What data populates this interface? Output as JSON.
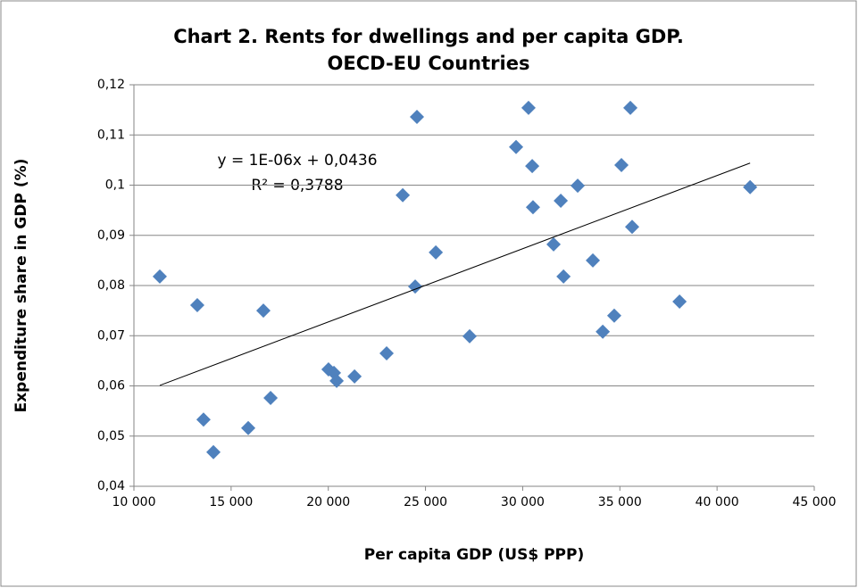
{
  "chart_data": {
    "type": "scatter",
    "title": [
      "Chart 2. Rents for dwellings and per capita GDP.",
      "OECD-EU Countries"
    ],
    "x_label": "Per capita GDP (US$ PPP)",
    "y_label": "Expenditure share in GDP (%)",
    "annotations": [
      "y = 1E-06x + 0,0436",
      "R² = 0,3788"
    ],
    "color": "#4f81bd",
    "grid": true,
    "xlim": [
      10000,
      45000
    ],
    "ylim": [
      0.04,
      0.12
    ],
    "xticks": [
      {
        "value": 10000,
        "label": "10 000"
      },
      {
        "value": 15000,
        "label": "15 000"
      },
      {
        "value": 20000,
        "label": "20 000"
      },
      {
        "value": 25000,
        "label": "25 000"
      },
      {
        "value": 30000,
        "label": "30 000"
      },
      {
        "value": 35000,
        "label": "35 000"
      },
      {
        "value": 40000,
        "label": "40 000"
      },
      {
        "value": 45000,
        "label": "45 000"
      }
    ],
    "yticks": [
      {
        "value": 0.04,
        "label": "0,04"
      },
      {
        "value": 0.05,
        "label": "0,05"
      },
      {
        "value": 0.06,
        "label": "0,06"
      },
      {
        "value": 0.07,
        "label": "0,07"
      },
      {
        "value": 0.08,
        "label": "0,08"
      },
      {
        "value": 0.09,
        "label": "0,09"
      },
      {
        "value": 0.1,
        "label": "0,1"
      },
      {
        "value": 0.11,
        "label": "0,11"
      },
      {
        "value": 0.12,
        "label": "0,12"
      }
    ],
    "x": [
      11330,
      13260,
      13580,
      14090,
      15880,
      16660,
      17030,
      20010,
      20290,
      20430,
      21350,
      23000,
      23830,
      24470,
      24560,
      25530,
      27270,
      29660,
      30300,
      30490,
      30530,
      31590,
      31960,
      32100,
      32830,
      33610,
      34120,
      34710,
      35080,
      35540,
      35630,
      38070,
      41700
    ],
    "y": [
      0.0818,
      0.0761,
      0.0533,
      0.0468,
      0.0516,
      0.075,
      0.0576,
      0.0633,
      0.0626,
      0.061,
      0.0619,
      0.0665,
      0.098,
      0.0798,
      0.1136,
      0.0866,
      0.0699,
      0.1076,
      0.1154,
      0.1038,
      0.0956,
      0.0882,
      0.0969,
      0.0818,
      0.0999,
      0.085,
      0.0708,
      0.074,
      0.104,
      0.1154,
      0.0917,
      0.0768,
      0.0996
    ],
    "trendline": {
      "x": [
        11330,
        41700
      ],
      "y": [
        0.0601,
        0.1044
      ],
      "color": "#000000"
    }
  }
}
